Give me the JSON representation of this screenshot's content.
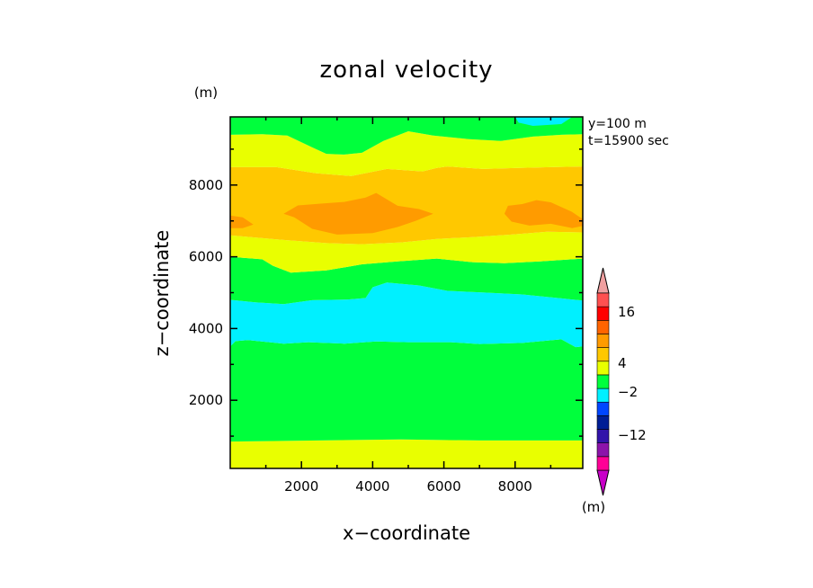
{
  "chart_data": {
    "type": "heatmap",
    "title": "zonal velocity",
    "xlabel": "x−coordinate",
    "ylabel": "z−coordinate",
    "x_unit": "(m)",
    "y_unit": "(m)",
    "annotations": [
      "y=100 m",
      "t=15900 sec"
    ],
    "xlim": [
      0,
      9900
    ],
    "ylim": [
      100,
      9900
    ],
    "x_ticks": [
      2000,
      4000,
      6000,
      8000
    ],
    "y_ticks": [
      2000,
      4000,
      6000,
      8000
    ],
    "bands": [
      {
        "name": "yellow-bottom",
        "color": "#e9ff00",
        "lower": [
          [
            0,
            100
          ],
          [
            9900,
            100
          ]
        ],
        "upper": [
          [
            0,
            850
          ],
          [
            2500,
            880
          ],
          [
            4800,
            910
          ],
          [
            7000,
            880
          ],
          [
            9900,
            880
          ]
        ]
      },
      {
        "name": "green-low",
        "color": "#00ff3c",
        "lower": [
          [
            0,
            850
          ],
          [
            2500,
            880
          ],
          [
            4800,
            910
          ],
          [
            7000,
            880
          ],
          [
            9900,
            880
          ]
        ],
        "upper": [
          [
            0,
            3500
          ],
          [
            150,
            3650
          ],
          [
            500,
            3680
          ],
          [
            1500,
            3580
          ],
          [
            2200,
            3620
          ],
          [
            3200,
            3580
          ],
          [
            4100,
            3640
          ],
          [
            5000,
            3620
          ],
          [
            6200,
            3620
          ],
          [
            7000,
            3570
          ],
          [
            8200,
            3600
          ],
          [
            9300,
            3700
          ],
          [
            9700,
            3480
          ],
          [
            9900,
            3500
          ]
        ]
      },
      {
        "name": "cyan-mid",
        "color": "#00f0ff",
        "lower": [
          [
            0,
            3500
          ],
          [
            150,
            3650
          ],
          [
            500,
            3680
          ],
          [
            1500,
            3580
          ],
          [
            2200,
            3620
          ],
          [
            3200,
            3580
          ],
          [
            4100,
            3640
          ],
          [
            5000,
            3620
          ],
          [
            6200,
            3620
          ],
          [
            7000,
            3570
          ],
          [
            8200,
            3600
          ],
          [
            9300,
            3700
          ],
          [
            9700,
            3480
          ],
          [
            9900,
            3500
          ]
        ],
        "upper": [
          [
            0,
            4800
          ],
          [
            700,
            4730
          ],
          [
            1500,
            4680
          ],
          [
            2300,
            4790
          ],
          [
            3300,
            4810
          ],
          [
            3800,
            4850
          ],
          [
            4000,
            5150
          ],
          [
            4400,
            5280
          ],
          [
            5300,
            5200
          ],
          [
            6100,
            5050
          ],
          [
            7200,
            5000
          ],
          [
            8200,
            4950
          ],
          [
            9400,
            4830
          ],
          [
            9900,
            4780
          ]
        ]
      },
      {
        "name": "green-mid",
        "color": "#00ff3c",
        "lower": [
          [
            0,
            4800
          ],
          [
            700,
            4730
          ],
          [
            1500,
            4680
          ],
          [
            2300,
            4790
          ],
          [
            3300,
            4810
          ],
          [
            3800,
            4850
          ],
          [
            4000,
            5150
          ],
          [
            4400,
            5280
          ],
          [
            5300,
            5200
          ],
          [
            6100,
            5050
          ],
          [
            7200,
            5000
          ],
          [
            8200,
            4950
          ],
          [
            9400,
            4830
          ],
          [
            9900,
            4780
          ]
        ],
        "upper": [
          [
            0,
            6000
          ],
          [
            900,
            5930
          ],
          [
            1200,
            5750
          ],
          [
            1700,
            5560
          ],
          [
            2700,
            5620
          ],
          [
            3700,
            5790
          ],
          [
            4700,
            5870
          ],
          [
            5800,
            5950
          ],
          [
            6800,
            5850
          ],
          [
            7700,
            5820
          ],
          [
            8700,
            5870
          ],
          [
            9900,
            5950
          ]
        ]
      },
      {
        "name": "yellow-mid",
        "color": "#e9ff00",
        "lower": [
          [
            0,
            6000
          ],
          [
            900,
            5930
          ],
          [
            1200,
            5750
          ],
          [
            1700,
            5560
          ],
          [
            2700,
            5620
          ],
          [
            3700,
            5790
          ],
          [
            4700,
            5870
          ],
          [
            5800,
            5950
          ],
          [
            6800,
            5850
          ],
          [
            7700,
            5820
          ],
          [
            8700,
            5870
          ],
          [
            9900,
            5950
          ]
        ],
        "upper": [
          [
            0,
            6600
          ],
          [
            1500,
            6470
          ],
          [
            2700,
            6380
          ],
          [
            3700,
            6350
          ],
          [
            4800,
            6400
          ],
          [
            5800,
            6500
          ],
          [
            6800,
            6550
          ],
          [
            7900,
            6620
          ],
          [
            8900,
            6700
          ],
          [
            9900,
            6680
          ]
        ]
      },
      {
        "name": "orange-light",
        "color": "#ffc800",
        "lower": [
          [
            0,
            6600
          ],
          [
            1500,
            6470
          ],
          [
            2700,
            6380
          ],
          [
            3700,
            6350
          ],
          [
            4800,
            6400
          ],
          [
            5800,
            6500
          ],
          [
            6800,
            6550
          ],
          [
            7900,
            6620
          ],
          [
            8900,
            6700
          ],
          [
            9900,
            6680
          ]
        ],
        "upper": [
          [
            0,
            8500
          ],
          [
            1300,
            8500
          ],
          [
            2400,
            8330
          ],
          [
            3400,
            8250
          ],
          [
            4400,
            8450
          ],
          [
            5400,
            8380
          ],
          [
            5800,
            8480
          ],
          [
            6100,
            8520
          ],
          [
            7100,
            8450
          ],
          [
            8100,
            8480
          ],
          [
            9000,
            8500
          ],
          [
            9900,
            8520
          ]
        ]
      },
      {
        "name": "yellow-top",
        "color": "#e9ff00",
        "lower": [
          [
            0,
            8500
          ],
          [
            1300,
            8500
          ],
          [
            2400,
            8330
          ],
          [
            3400,
            8250
          ],
          [
            4400,
            8450
          ],
          [
            5400,
            8380
          ],
          [
            5800,
            8480
          ],
          [
            6100,
            8520
          ],
          [
            7100,
            8450
          ],
          [
            8100,
            8480
          ],
          [
            9000,
            8500
          ],
          [
            9900,
            8520
          ]
        ],
        "upper": [
          [
            0,
            9400
          ],
          [
            900,
            9420
          ],
          [
            1600,
            9380
          ],
          [
            2300,
            9050
          ],
          [
            2700,
            8870
          ],
          [
            3200,
            8850
          ],
          [
            3700,
            8900
          ],
          [
            4300,
            9230
          ],
          [
            5000,
            9500
          ],
          [
            5700,
            9380
          ],
          [
            6700,
            9280
          ],
          [
            7600,
            9230
          ],
          [
            8500,
            9350
          ],
          [
            9300,
            9400
          ],
          [
            9900,
            9420
          ]
        ]
      },
      {
        "name": "green-top",
        "color": "#00ff3c",
        "lower": [
          [
            0,
            9400
          ],
          [
            900,
            9420
          ],
          [
            1600,
            9380
          ],
          [
            2300,
            9050
          ],
          [
            2700,
            8870
          ],
          [
            3200,
            8850
          ],
          [
            3700,
            8900
          ],
          [
            4300,
            9230
          ],
          [
            5000,
            9500
          ],
          [
            5700,
            9380
          ],
          [
            6700,
            9280
          ],
          [
            7600,
            9230
          ],
          [
            8500,
            9350
          ],
          [
            9300,
            9400
          ],
          [
            9900,
            9420
          ]
        ],
        "upper": [
          [
            0,
            9900
          ],
          [
            9900,
            9900
          ]
        ]
      }
    ],
    "patches": [
      {
        "name": "orange-dark-left",
        "color": "#ff9b00",
        "points": [
          [
            0,
            6800
          ],
          [
            350,
            6800
          ],
          [
            650,
            6900
          ],
          [
            350,
            7100
          ],
          [
            0,
            7150
          ]
        ]
      },
      {
        "name": "orange-dark-center",
        "color": "#ff9b00",
        "points": [
          [
            1500,
            7200
          ],
          [
            1800,
            7100
          ],
          [
            2300,
            6780
          ],
          [
            3000,
            6620
          ],
          [
            4000,
            6660
          ],
          [
            4700,
            6830
          ],
          [
            5200,
            7000
          ],
          [
            5700,
            7200
          ],
          [
            5300,
            7330
          ],
          [
            4700,
            7420
          ],
          [
            4100,
            7780
          ],
          [
            3800,
            7650
          ],
          [
            3200,
            7530
          ],
          [
            2500,
            7480
          ],
          [
            1900,
            7430
          ]
        ]
      },
      {
        "name": "orange-dark-right",
        "color": "#ff9b00",
        "points": [
          [
            7700,
            7200
          ],
          [
            7900,
            6980
          ],
          [
            8400,
            6870
          ],
          [
            9000,
            6920
          ],
          [
            9600,
            6800
          ],
          [
            9900,
            6860
          ],
          [
            9900,
            7050
          ],
          [
            9600,
            7250
          ],
          [
            9000,
            7520
          ],
          [
            8600,
            7580
          ],
          [
            8200,
            7470
          ],
          [
            7800,
            7420
          ]
        ]
      },
      {
        "name": "cyan-top-right",
        "color": "#00f0ff",
        "points": [
          [
            8000,
            9900
          ],
          [
            8100,
            9740
          ],
          [
            8500,
            9650
          ],
          [
            9300,
            9700
          ],
          [
            9600,
            9900
          ]
        ]
      }
    ],
    "colorbar": {
      "colors": [
        "#c800c8",
        "#ff0096",
        "#8c14aa",
        "#3214aa",
        "#001e96",
        "#0046ff",
        "#00f0ff",
        "#00ff3c",
        "#e9ff00",
        "#ffc800",
        "#ff9b00",
        "#ff6400",
        "#ff0000",
        "#ff5050",
        "#f0a0a0"
      ],
      "labels": [
        "16",
        "4",
        "−2",
        "−12"
      ],
      "unit": "(m)"
    }
  }
}
